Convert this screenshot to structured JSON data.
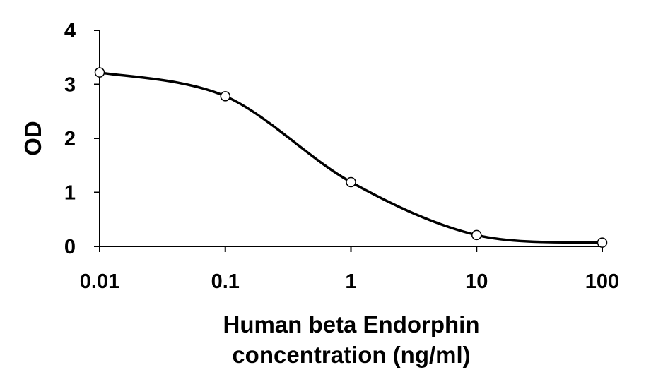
{
  "chart_data": {
    "type": "line",
    "title": "",
    "xlabel_lines": [
      "Human beta Endorphin",
      "concentration (ng/ml)"
    ],
    "ylabel": "OD",
    "x_scale": "log",
    "xlim": [
      0.01,
      100
    ],
    "ylim": [
      0,
      4
    ],
    "x_ticks": [
      0.01,
      0.1,
      1,
      10,
      100
    ],
    "x_tick_labels": [
      "0.01",
      "0.1",
      "1",
      "10",
      "100"
    ],
    "y_ticks": [
      0,
      1,
      2,
      3,
      4
    ],
    "y_tick_labels": [
      "0",
      "1",
      "2",
      "3",
      "4"
    ],
    "grid": false,
    "legend": "none",
    "series": [
      {
        "x": [
          0.01,
          0.1,
          1,
          10,
          100
        ],
        "y": [
          3.22,
          2.78,
          1.19,
          0.21,
          0.07
        ],
        "line_color": "#000000",
        "marker": "open-circle"
      }
    ]
  }
}
